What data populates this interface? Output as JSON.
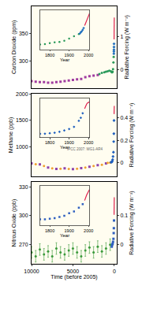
{
  "chart_data": [
    {
      "type": "scatter",
      "ylabel": "Carbon Dioxide (ppm)",
      "y2label": "Radiative Forcing (W m⁻²)",
      "xlim": [
        10000,
        -300
      ],
      "ylim": [
        250,
        400
      ],
      "yticks": [
        300,
        350
      ],
      "y2lim": [
        -0.57,
        1.95
      ],
      "y2ticks": [
        0,
        1
      ],
      "series": [
        {
          "color": "#a03ca0",
          "marker": "square",
          "x": [
            10000,
            9500,
            9000,
            8500,
            8000,
            7500,
            7000,
            6500,
            6000,
            5500,
            5000,
            4500,
            4000,
            3500,
            3000,
            2500,
            2000
          ],
          "values": [
            263,
            262,
            261,
            261,
            260,
            260,
            261,
            262,
            263,
            264,
            265,
            266,
            267,
            270,
            272,
            273,
            274
          ]
        },
        {
          "color": "#2a9a5a",
          "marker": "circle",
          "x": [
            1800,
            1500,
            1200,
            1000,
            800,
            600,
            400,
            300,
            250,
            200,
            150,
            100,
            70
          ],
          "values": [
            276,
            278,
            279,
            280,
            281,
            282,
            281,
            279,
            279,
            280,
            285,
            297,
            307
          ]
        },
        {
          "color": "#1f6fbf",
          "marker": "diamond",
          "x": [
            50,
            45,
            40,
            35,
            30
          ],
          "values": [
            313,
            317,
            320,
            325,
            331
          ]
        },
        {
          "color": "#e0204d",
          "line_style": "solid",
          "x": [
            25,
            15,
            5,
            0
          ],
          "values": [
            339,
            354,
            369,
            379
          ]
        }
      ],
      "inset": {
        "xlabel": "Year",
        "xlim": [
          1750,
          2005
        ],
        "xticks": [
          1800,
          1900,
          2000
        ],
        "ylim": [
          260,
          390
        ],
        "series": [
          {
            "color": "#2a9a5a",
            "marker": "circle",
            "x": [
              1750,
              1775,
              1800,
              1825,
              1850,
              1875,
              1900,
              1925,
              1950
            ],
            "values": [
              277,
              278,
              281,
              284,
              285,
              289,
              296,
              304,
              311
            ]
          },
          {
            "color": "#1f6fbf",
            "marker": "diamond",
            "x": [
              1955,
              1960,
              1965,
              1970,
              1975
            ],
            "values": [
              313,
              317,
              320,
              325,
              331
            ]
          },
          {
            "color": "#e0204d",
            "line_style": "solid",
            "x": [
              1980,
              1990,
              2000,
              2005
            ],
            "values": [
              339,
              354,
              369,
              379
            ]
          }
        ]
      }
    },
    {
      "type": "scatter",
      "ylabel": "Methane (ppb)",
      "y2label": "Radiative Forcing (W m⁻²)",
      "xlim": [
        10000,
        -300
      ],
      "ylim": [
        450,
        2000
      ],
      "yticks": [
        1000,
        1500,
        2000
      ],
      "y2lim": [
        -0.1175,
        0.611
      ],
      "y2ticks": [
        0,
        0.2,
        0.4
      ],
      "annotations": [
        {
          "text": "IPCC 2007: WG1-AR4"
        }
      ],
      "series": [
        {
          "color": "#8e44ad",
          "marker": "square",
          "x": [
            10000,
            9000,
            8000,
            7000,
            6000,
            5000,
            4000,
            3000,
            2000,
            1000
          ],
          "values": [
            690,
            670,
            610,
            585,
            595,
            580,
            600,
            625,
            655,
            690
          ]
        },
        {
          "color": "#f0a030",
          "marker": "circle",
          "x": [
            9500,
            8500,
            7500,
            6500,
            5500,
            4500,
            3500,
            2500,
            1500,
            800,
            500
          ],
          "values": [
            675,
            640,
            595,
            590,
            585,
            590,
            610,
            640,
            665,
            700,
            705
          ]
        },
        {
          "color": "#1f5fbf",
          "marker": "diamond",
          "x": [
            400,
            300,
            250,
            200,
            150,
            100,
            70,
            50,
            30
          ],
          "values": [
            710,
            715,
            730,
            760,
            820,
            900,
            1100,
            1250,
            1500
          ]
        },
        {
          "color": "#e0204d",
          "line_style": "solid",
          "x": [
            25,
            15,
            5,
            0
          ],
          "values": [
            1620,
            1700,
            1760,
            1774
          ]
        }
      ],
      "inset": {
        "xlabel": "Year",
        "xlim": [
          1750,
          2005
        ],
        "xticks": [
          1800,
          1900,
          2000
        ],
        "ylim": [
          600,
          1900
        ],
        "series": [
          {
            "color": "#1f5fbf",
            "marker": "diamond",
            "x": [
              1750,
              1775,
              1800,
              1825,
              1850,
              1875,
              1900,
              1925,
              1950,
              1960,
              1970
            ],
            "values": [
              720,
              725,
              740,
              755,
              790,
              830,
              880,
              950,
              1150,
              1250,
              1400
            ]
          },
          {
            "color": "#e0204d",
            "line_style": "solid",
            "x": [
              1980,
              1985,
              1990,
              1995,
              2000,
              2005
            ],
            "values": [
              1550,
              1640,
              1700,
              1740,
              1760,
              1774
            ]
          }
        ]
      }
    },
    {
      "type": "scatter",
      "ylabel": "Nitrous Oxide (ppb)",
      "y2label": "Radiative Forcing (W m⁻²)",
      "xlabel": "Time (before 2005)",
      "xlim": [
        10000,
        -300
      ],
      "xticks": [
        10000,
        5000,
        0
      ],
      "ylim": [
        250,
        335
      ],
      "yticks": [
        270,
        300,
        330
      ],
      "y2lim": [
        -0.0667,
        0.2167
      ],
      "y2ticks": [
        0,
        0.1
      ],
      "series": [
        {
          "color": "#3a9a3a",
          "marker": "circle",
          "x": [
            10000,
            9500,
            9000,
            8500,
            8000,
            7500,
            7000,
            6500,
            6000,
            5500,
            5000,
            4500,
            4000,
            3500,
            3000,
            2500,
            2000,
            1500,
            1000,
            500
          ],
          "values": [
            262,
            258,
            265,
            260,
            263,
            258,
            266,
            262,
            260,
            264,
            266,
            262,
            258,
            264,
            267,
            262,
            268,
            263,
            266,
            270
          ],
          "errors": [
            6,
            6,
            6,
            6,
            6,
            6,
            6,
            6,
            6,
            6,
            6,
            6,
            6,
            6,
            6,
            6,
            6,
            6,
            6,
            6
          ]
        },
        {
          "color": "#3060c0",
          "marker": "square",
          "x": [
            300,
            250,
            200,
            150,
            100,
            70,
            50,
            30
          ],
          "values": [
            268,
            270,
            271,
            273,
            276,
            282,
            287,
            295
          ]
        },
        {
          "color": "#e0204d",
          "line_style": "solid",
          "x": [
            25,
            15,
            5,
            0
          ],
          "values": [
            301,
            310,
            316,
            319
          ]
        }
      ],
      "inset": {
        "xlabel": "Year",
        "xlim": [
          1750,
          2005
        ],
        "xticks": [
          1800,
          1900,
          2000
        ],
        "ylim": [
          260,
          325
        ],
        "series": [
          {
            "color": "#3060c0",
            "marker": "square",
            "x": [
              1750,
              1775,
              1800,
              1825,
              1850,
              1875,
              1900,
              1925,
              1950,
              1970
            ],
            "values": [
              270,
              270,
              271,
              272,
              274,
              276,
              280,
              283,
              289,
              295
            ]
          },
          {
            "color": "#e0204d",
            "line_style": "solid",
            "x": [
              1980,
              1990,
              2000,
              2005
            ],
            "values": [
              301,
              310,
              316,
              319
            ]
          }
        ]
      }
    }
  ]
}
